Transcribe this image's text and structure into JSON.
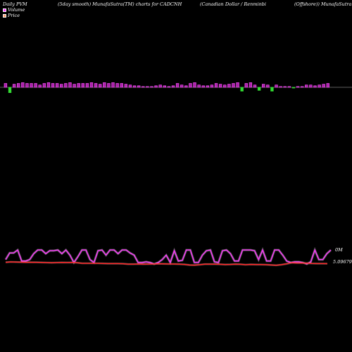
{
  "header": {
    "title_1": "Daily PVM",
    "title_2": "(5day smooth) MunafaSutra(TM) charts for CADCNH",
    "title_3": "(Canadian  Dollar / Renminbi",
    "title_4": "(Offshore)) MunafaSutra.com"
  },
  "legend": {
    "volume_label": "Volume",
    "price_label": "Price"
  },
  "chart_data": [
    {
      "type": "bar",
      "title": "",
      "series": [
        {
          "name": "Volume",
          "values": [
            5,
            -7,
            4,
            5,
            6,
            5,
            5,
            5,
            3,
            5,
            6,
            5,
            5,
            4,
            5,
            6,
            4,
            5,
            5,
            5,
            6,
            5,
            4,
            6,
            5,
            6,
            5,
            5,
            4,
            3,
            2,
            2,
            1,
            1,
            1,
            2,
            3,
            2,
            1,
            2,
            5,
            3,
            2,
            5,
            6,
            3,
            2,
            2,
            3,
            5,
            4,
            3,
            4,
            5,
            6,
            -5,
            5,
            6,
            3,
            -4,
            4,
            3,
            -5,
            3,
            1,
            1,
            1,
            -1,
            1,
            1,
            3,
            3,
            2,
            3,
            4,
            5
          ],
          "colors": [
            "#ff33ff",
            "#33dd33",
            "#ff33ff",
            "#ff33ff",
            "#ff33ff",
            "#ff33ff",
            "#ff33ff",
            "#ff33ff",
            "#ff33ff",
            "#ff33ff",
            "#ff33ff",
            "#ff33ff",
            "#ff33ff",
            "#ff33ff",
            "#ff33ff",
            "#ff33ff",
            "#ff33ff",
            "#ff33ff",
            "#ff33ff",
            "#ff33ff",
            "#ff33ff",
            "#ff33ff",
            "#ff33ff",
            "#ff33ff",
            "#ff33ff",
            "#ff33ff",
            "#ff33ff",
            "#ff33ff",
            "#ff33ff",
            "#ff33ff",
            "#ff33ff",
            "#ff33ff",
            "#ff33ff",
            "#ff33ff",
            "#ff33ff",
            "#ff33ff",
            "#ff33ff",
            "#ff33ff",
            "#ff33ff",
            "#ff33ff",
            "#ff33ff",
            "#ff33ff",
            "#ff33ff",
            "#ff33ff",
            "#ff33ff",
            "#ff33ff",
            "#ff33ff",
            "#ff33ff",
            "#ff33ff",
            "#ff33ff",
            "#ff33ff",
            "#ff33ff",
            "#ff33ff",
            "#ff33ff",
            "#ff33ff",
            "#33dd33",
            "#ff33ff",
            "#ff33ff",
            "#ff33ff",
            "#33dd33",
            "#ff33ff",
            "#ff33ff",
            "#33dd33",
            "#ff33ff",
            "#ff33ff",
            "#ff33ff",
            "#ff33ff",
            "#33dd33",
            "#ff33ff",
            "#ff33ff",
            "#ff33ff",
            "#ff33ff",
            "#ff33ff",
            "#ff33ff",
            "#ff33ff",
            "#ff33ff"
          ]
        }
      ],
      "baseline_color": "#bbbbbb"
    },
    {
      "type": "line",
      "title": "",
      "right_labels": [
        "0M",
        "5.09679"
      ],
      "series": [
        {
          "name": "Volume",
          "color": "#ff33ff",
          "values": [
            0.3,
            0.75,
            0.75,
            0.95,
            0.2,
            0.2,
            0.3,
            0.7,
            0.95,
            0.95,
            0.7,
            0.9,
            0.9,
            0.95,
            0.7,
            0.95,
            0.6,
            0.1,
            0.5,
            0.95,
            0.95,
            0.3,
            0.1,
            0.9,
            0.95,
            0.6,
            0.95,
            0.95,
            0.7,
            0.95,
            0.95,
            0.75,
            0.6,
            0.1,
            0.1,
            0.15,
            0.1,
            0.0,
            0.1,
            0.3,
            0.6,
            0.1,
            0.9,
            0.2,
            0.25,
            0.95,
            0.95,
            0.1,
            0.1,
            0.6,
            0.9,
            0.95,
            0.15,
            0.1,
            0.9,
            0.95,
            0.7,
            0.2,
            0.2,
            0.95,
            0.95,
            0.95,
            0.9,
            0.3,
            0.95,
            0.2,
            0.2,
            0.95,
            0.95,
            0.6,
            0.2,
            0.1,
            0.15,
            0.15,
            0.1,
            0.0,
            0.15,
            0.95,
            0.3,
            0.3,
            0.7,
            0.95
          ],
          "labels_map": null
        },
        {
          "name": "Price",
          "color": "#ff2222",
          "values": [
            0.35,
            0.5,
            0.45,
            0.4,
            0.35,
            0.38,
            0.35,
            0.3,
            0.25,
            0.2,
            0.25,
            0.3,
            0.28,
            0.3,
            0.2,
            0.0,
            0.0,
            0.0,
            0.0,
            -0.05,
            -0.1,
            -0.1,
            -0.1,
            -0.15,
            -0.3,
            -0.3,
            -0.25,
            -0.3,
            -0.28,
            -0.25,
            -0.15,
            -0.2,
            -0.25,
            -0.25,
            -0.3,
            -0.4,
            -0.6,
            -0.65,
            -0.5,
            -0.3,
            -0.3,
            -0.3,
            -0.35,
            -0.45,
            -0.4,
            -0.3,
            -0.35,
            -0.5,
            -0.4,
            -0.45,
            -0.45,
            -0.5,
            -0.6,
            -0.7,
            -0.5,
            -0.2,
            0.2,
            0.1,
            0.1,
            0.05,
            -0.05,
            -0.1,
            -0.1,
            -0.12
          ]
        }
      ]
    }
  ]
}
